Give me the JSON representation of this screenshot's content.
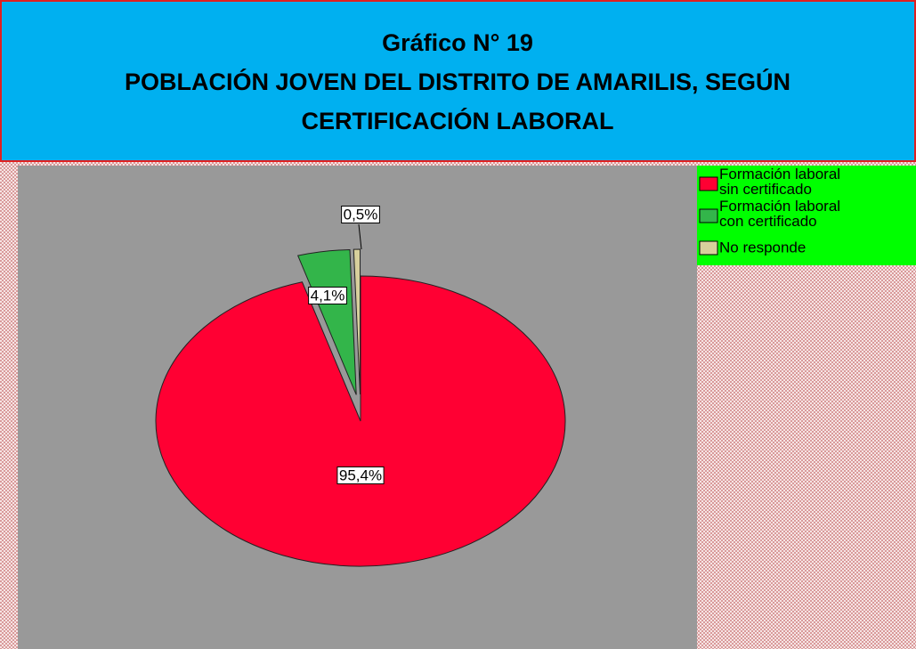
{
  "chart_data": {
    "type": "pie",
    "title": [
      "Gráfico N° 19",
      "POBLACIÓN JOVEN DEL DISTRITO DE AMARILIS, SEGÚN",
      "CERTIFICACIÓN LABORAL"
    ],
    "categories": [
      "Formación laboral sin certificado",
      "Formación laboral con certificado",
      "No responde"
    ],
    "values": [
      95.4,
      4.1,
      0.5
    ],
    "value_labels": [
      "95,4%",
      "4,1%",
      "0,5%"
    ],
    "colors": [
      "#ff0033",
      "#33b54a",
      "#d8d09c"
    ],
    "legend": "top-right"
  }
}
